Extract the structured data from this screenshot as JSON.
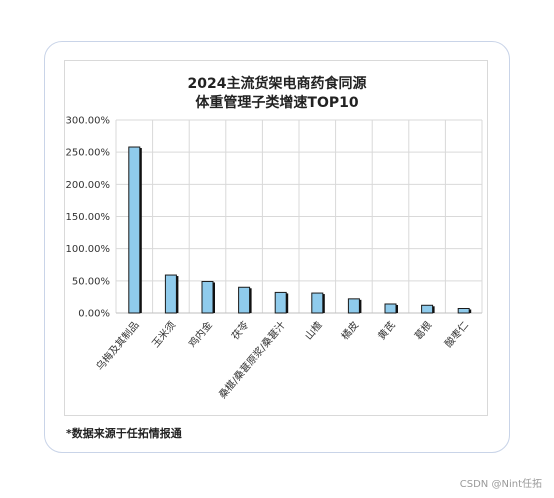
{
  "chart_data": {
    "type": "bar",
    "title_lines": [
      "2024主流货架电商药食同源",
      "体重管理子类增速TOP10"
    ],
    "categories": [
      "乌梅及其制品",
      "玉米须",
      "鸡内金",
      "茯苓",
      "桑椹/桑葚原浆/桑葚汁",
      "山楂",
      "橘皮",
      "黄芪",
      "葛根",
      "酸枣仁"
    ],
    "values": [
      2.58,
      0.59,
      0.49,
      0.4,
      0.32,
      0.31,
      0.22,
      0.14,
      0.12,
      0.07
    ],
    "y_ticks": [
      "0.00%",
      "50.00%",
      "100.00%",
      "150.00%",
      "200.00%",
      "250.00%",
      "300.00%"
    ],
    "ylim": [
      0,
      3.0
    ],
    "grid": true,
    "xlabel": "",
    "ylabel": "",
    "colors": {
      "bar": "#8fcbec",
      "bar_stroke": "#1a1a1a",
      "grid": "#d9d9d9"
    }
  },
  "note": "*数据来源于任拓情报通",
  "watermark": "CSDN @Nint任拓"
}
